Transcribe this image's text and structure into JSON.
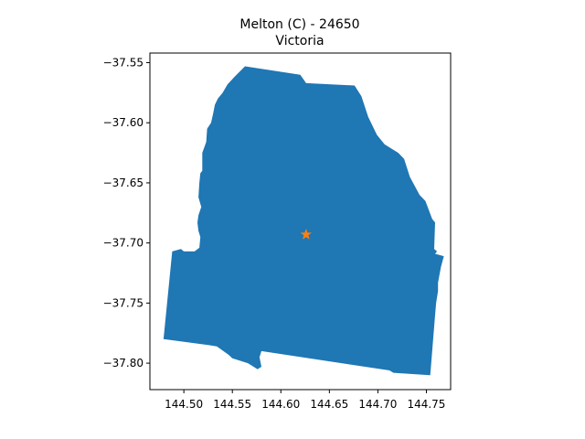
{
  "title": {
    "line1": "Melton (C) - 24650",
    "line2": "Victoria"
  },
  "colors": {
    "region_fill": "#1f77b4",
    "marker": "#ff7f0e",
    "axis": "#000000"
  },
  "marker_icon": "star-icon",
  "map": {
    "xlim": [
      144.465,
      144.775
    ],
    "ylim": [
      -37.822,
      -37.542
    ],
    "centroid": {
      "lon": 144.626,
      "lat": -37.693
    },
    "xticks": [
      {
        "value": 144.5,
        "label": "144.50"
      },
      {
        "value": 144.55,
        "label": "144.55"
      },
      {
        "value": 144.6,
        "label": "144.60"
      },
      {
        "value": 144.65,
        "label": "144.65"
      },
      {
        "value": 144.7,
        "label": "144.70"
      },
      {
        "value": 144.75,
        "label": "144.75"
      }
    ],
    "yticks": [
      {
        "value": -37.55,
        "label": "−37.55"
      },
      {
        "value": -37.6,
        "label": "−37.60"
      },
      {
        "value": -37.65,
        "label": "−37.65"
      },
      {
        "value": -37.7,
        "label": "−37.70"
      },
      {
        "value": -37.75,
        "label": "−37.75"
      },
      {
        "value": -37.8,
        "label": "−37.80"
      }
    ],
    "boundary": [
      [
        144.563,
        -37.553
      ],
      [
        144.62,
        -37.56
      ],
      [
        144.626,
        -37.567
      ],
      [
        144.676,
        -37.569
      ],
      [
        144.683,
        -37.578
      ],
      [
        144.69,
        -37.595
      ],
      [
        144.699,
        -37.61
      ],
      [
        144.707,
        -37.618
      ],
      [
        144.715,
        -37.622
      ],
      [
        144.721,
        -37.625
      ],
      [
        144.727,
        -37.63
      ],
      [
        144.733,
        -37.645
      ],
      [
        144.743,
        -37.66
      ],
      [
        144.749,
        -37.665
      ],
      [
        144.756,
        -37.68
      ],
      [
        144.759,
        -37.683
      ],
      [
        144.758,
        -37.705
      ],
      [
        144.761,
        -37.707
      ],
      [
        144.759,
        -37.709
      ],
      [
        144.768,
        -37.711
      ],
      [
        144.765,
        -37.72
      ],
      [
        144.762,
        -37.733
      ],
      [
        144.762,
        -37.74
      ],
      [
        144.76,
        -37.75
      ],
      [
        144.759,
        -37.76
      ],
      [
        144.754,
        -37.81
      ],
      [
        144.716,
        -37.808
      ],
      [
        144.712,
        -37.806
      ],
      [
        144.58,
        -37.79
      ],
      [
        144.578,
        -37.795
      ],
      [
        144.58,
        -37.803
      ],
      [
        144.576,
        -37.805
      ],
      [
        144.566,
        -37.8
      ],
      [
        144.55,
        -37.796
      ],
      [
        144.546,
        -37.793
      ],
      [
        144.534,
        -37.786
      ],
      [
        144.526,
        -37.785
      ],
      [
        144.479,
        -37.78
      ],
      [
        144.488,
        -37.707
      ],
      [
        144.497,
        -37.705
      ],
      [
        144.5,
        -37.707
      ],
      [
        144.511,
        -37.707
      ],
      [
        144.516,
        -37.704
      ],
      [
        144.517,
        -37.695
      ],
      [
        144.515,
        -37.69
      ],
      [
        144.514,
        -37.683
      ],
      [
        144.515,
        -37.677
      ],
      [
        144.518,
        -37.67
      ],
      [
        144.515,
        -37.662
      ],
      [
        144.516,
        -37.65
      ],
      [
        144.517,
        -37.642
      ],
      [
        144.519,
        -37.64
      ],
      [
        144.519,
        -37.625
      ],
      [
        144.523,
        -37.616
      ],
      [
        144.524,
        -37.605
      ],
      [
        144.528,
        -37.6
      ],
      [
        144.53,
        -37.593
      ],
      [
        144.532,
        -37.585
      ],
      [
        144.535,
        -37.58
      ],
      [
        144.54,
        -37.575
      ],
      [
        144.545,
        -37.568
      ],
      [
        144.552,
        -37.562
      ]
    ]
  }
}
